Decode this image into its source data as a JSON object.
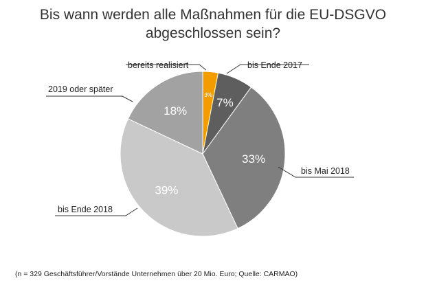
{
  "chart_data": {
    "type": "pie",
    "title": [
      "Bis wann werden alle Maßnahmen für die EU-DSGVO",
      "abgeschlossen sein?"
    ],
    "slices": [
      {
        "label": "bereits realisiert",
        "value": 3,
        "value_label": "3%",
        "color": "#F39C00"
      },
      {
        "label": "bis Ende 2017",
        "value": 7,
        "value_label": "7%",
        "color": "#5E5E5E"
      },
      {
        "label": "bis Mai 2018",
        "value": 33,
        "value_label": "33%",
        "color": "#7F7F7F"
      },
      {
        "label": "bis Ende 2018",
        "value": 39,
        "value_label": "39%",
        "color": "#C9C9C9"
      },
      {
        "label": "2019 oder später",
        "value": 18,
        "value_label": "18%",
        "color": "#A2A2A2"
      }
    ],
    "start": "top",
    "direction": "clockwise",
    "footnote": "(n = 329 Geschäftsführer/Vorstände Unternehmen über 20 Mio. Euro; Quelle: CARMAO)"
  }
}
